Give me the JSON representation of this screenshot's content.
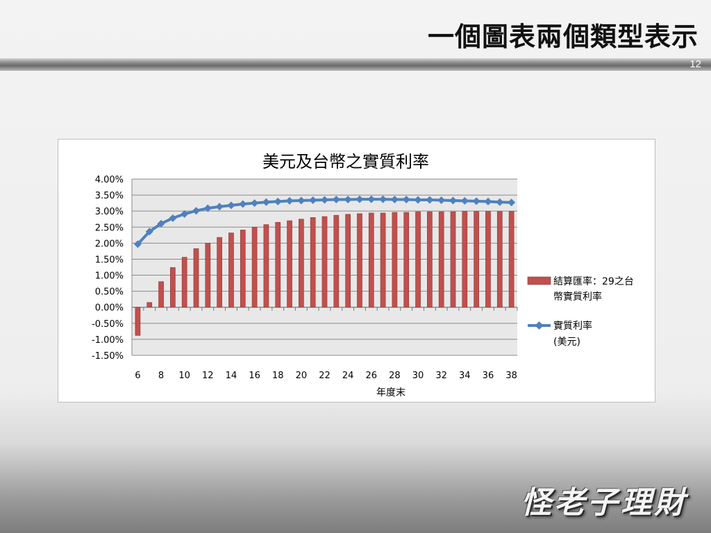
{
  "slide": {
    "title": "一個圖表兩個類型表示",
    "page_number": "12",
    "logo_text": "怪老子理財"
  },
  "colors": {
    "bar_fill": "#c0504d",
    "bar_stroke": "#8c3836",
    "line": "#4f81bd",
    "plot_bg": "#e8e8e8"
  },
  "chart_data": {
    "type": "bar",
    "title": "美元及台幣之實質利率",
    "xlabel": "年度末",
    "ylabel": "",
    "ylim": [
      -0.015,
      0.04
    ],
    "yticks": [
      "4.00%",
      "3.50%",
      "3.00%",
      "2.50%",
      "2.00%",
      "1.50%",
      "1.00%",
      "0.50%",
      "0.00%",
      "-0.50%",
      "-1.00%",
      "-1.50%"
    ],
    "yticks_values": [
      0.04,
      0.035,
      0.03,
      0.025,
      0.02,
      0.015,
      0.01,
      0.005,
      0,
      -0.005,
      -0.01,
      -0.015
    ],
    "x": [
      6,
      7,
      8,
      9,
      10,
      11,
      12,
      13,
      14,
      15,
      16,
      17,
      18,
      19,
      20,
      21,
      22,
      23,
      24,
      25,
      26,
      27,
      28,
      29,
      30,
      31,
      32,
      33,
      34,
      35,
      36,
      37,
      38
    ],
    "xtick_labels": [
      "6",
      "8",
      "10",
      "12",
      "14",
      "16",
      "18",
      "20",
      "22",
      "24",
      "26",
      "28",
      "30",
      "32",
      "34",
      "36",
      "38"
    ],
    "grid": true,
    "legend_position": "right",
    "series": [
      {
        "name": "結算匯率：29之台幣實質利率",
        "legend_line1": "結算匯率：29之台",
        "legend_line2": "幣實質利率",
        "type": "bar",
        "values": [
          -0.0088,
          0.0015,
          0.008,
          0.0124,
          0.0156,
          0.0183,
          0.02,
          0.0218,
          0.0232,
          0.0241,
          0.025,
          0.0258,
          0.0265,
          0.027,
          0.0275,
          0.028,
          0.0283,
          0.0287,
          0.029,
          0.0292,
          0.0294,
          0.0294,
          0.0296,
          0.0296,
          0.0298,
          0.0298,
          0.0298,
          0.0298,
          0.0299,
          0.0299,
          0.0299,
          0.0299,
          0.0299
        ]
      },
      {
        "name": "實質利率(美元)",
        "legend_line1": "實質利率",
        "legend_line2": "(美元)",
        "type": "line",
        "values": [
          0.0197,
          0.0236,
          0.0261,
          0.0278,
          0.0291,
          0.0301,
          0.0309,
          0.0314,
          0.0318,
          0.0322,
          0.0325,
          0.0328,
          0.033,
          0.0332,
          0.0333,
          0.0334,
          0.0335,
          0.0336,
          0.0336,
          0.0337,
          0.0337,
          0.0337,
          0.0336,
          0.0336,
          0.0335,
          0.0335,
          0.0334,
          0.0333,
          0.0332,
          0.0331,
          0.033,
          0.0328,
          0.0327
        ]
      }
    ]
  }
}
